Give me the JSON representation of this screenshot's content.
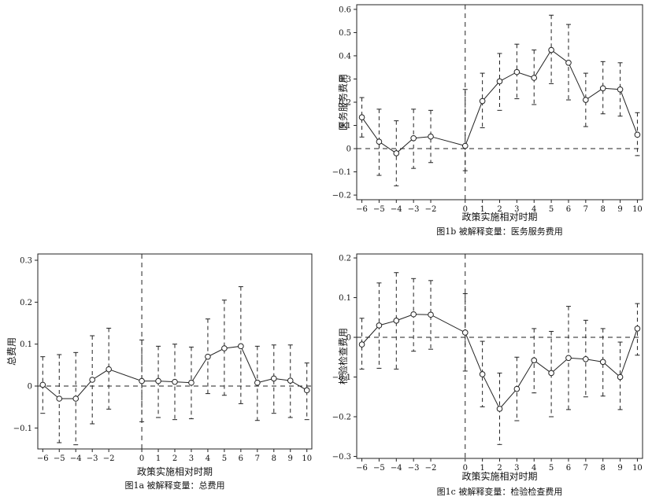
{
  "chart_data": [
    {
      "id": "1b",
      "type": "line",
      "caption": "图1b  被解释变量：医务服务费用",
      "xlabel": "政策实施相对时期",
      "ylabel": "医务服务费用",
      "x": [
        -6,
        -5,
        -4,
        -3,
        -2,
        0,
        1,
        2,
        3,
        4,
        5,
        6,
        7,
        8,
        9,
        10
      ],
      "x_ticks": [
        -6,
        -5,
        -4,
        -3,
        -2,
        0,
        1,
        2,
        3,
        4,
        5,
        6,
        7,
        8,
        9,
        10
      ],
      "x_tick_labels": [
        "−6",
        "−5",
        "−4",
        "−3",
        "−2",
        "0",
        "1",
        "2",
        "3",
        "4",
        "5",
        "6",
        "7",
        "8",
        "9",
        "10"
      ],
      "y_ticks": [
        -0.2,
        -0.1,
        0,
        0.1,
        0.2,
        0.3,
        0.4,
        0.5,
        0.6
      ],
      "y_tick_labels": [
        "−0.2",
        "−0.1",
        "0",
        "0.1",
        "0.2",
        "0.3",
        "0.4",
        "0.5",
        "0.6"
      ],
      "xlim": [
        -6.3,
        10.3
      ],
      "ylim": [
        -0.22,
        0.62
      ],
      "grid": false,
      "reference_lines": {
        "y": 0,
        "x": 0
      },
      "series": [
        {
          "values": [
            0.135,
            0.03,
            -0.02,
            0.045,
            0.052,
            0.012,
            0.205,
            0.29,
            0.33,
            0.305,
            0.425,
            0.37,
            0.21,
            0.26,
            0.255,
            0.06
          ],
          "ci_low": [
            0.05,
            -0.115,
            -0.16,
            -0.085,
            -0.06,
            -0.095,
            0.09,
            0.165,
            0.215,
            0.19,
            0.28,
            0.21,
            0.095,
            0.15,
            0.14,
            -0.03
          ],
          "ci_high": [
            0.22,
            0.17,
            0.12,
            0.17,
            0.165,
            0.255,
            0.325,
            0.41,
            0.45,
            0.425,
            0.575,
            0.535,
            0.325,
            0.375,
            0.37,
            0.155
          ]
        }
      ]
    },
    {
      "id": "1a",
      "type": "line",
      "caption": "图1a  被解释变量：总费用",
      "xlabel": "政策实施相对时期",
      "ylabel": "总费用",
      "x": [
        -6,
        -5,
        -4,
        -3,
        -2,
        0,
        1,
        2,
        3,
        4,
        5,
        6,
        7,
        8,
        9,
        10
      ],
      "x_ticks": [
        -6,
        -5,
        -4,
        -3,
        -2,
        0,
        1,
        2,
        3,
        4,
        5,
        6,
        7,
        8,
        9,
        10
      ],
      "x_tick_labels": [
        "−6",
        "−5",
        "−4",
        "−3",
        "−2",
        "0",
        "1",
        "2",
        "3",
        "4",
        "5",
        "6",
        "7",
        "8",
        "9",
        "10"
      ],
      "y_ticks": [
        -0.1,
        0,
        0.1,
        0.2,
        0.3
      ],
      "y_tick_labels": [
        "−0.1",
        "0",
        "0.1",
        "0.2",
        "0.3"
      ],
      "xlim": [
        -6.3,
        10.3
      ],
      "ylim": [
        -0.15,
        0.315
      ],
      "grid": false,
      "reference_lines": {
        "y": 0,
        "x": 0
      },
      "series": [
        {
          "values": [
            0.003,
            -0.03,
            -0.03,
            0.015,
            0.04,
            0.012,
            0.012,
            0.01,
            0.008,
            0.07,
            0.09,
            0.095,
            0.008,
            0.018,
            0.013,
            -0.01
          ],
          "ci_low": [
            -0.065,
            -0.135,
            -0.14,
            -0.09,
            -0.055,
            -0.085,
            -0.075,
            -0.08,
            -0.078,
            -0.018,
            -0.022,
            -0.042,
            -0.082,
            -0.065,
            -0.075,
            -0.08
          ],
          "ci_high": [
            0.07,
            0.075,
            0.08,
            0.12,
            0.138,
            0.11,
            0.095,
            0.1,
            0.093,
            0.16,
            0.205,
            0.237,
            0.095,
            0.098,
            0.098,
            0.055
          ]
        }
      ]
    },
    {
      "id": "1c",
      "type": "line",
      "caption": "图1c  被解释变量：检验检查费用",
      "xlabel": "政策实施相对时期",
      "ylabel": "检验检查费用",
      "x": [
        -6,
        -5,
        -4,
        -3,
        -2,
        0,
        1,
        2,
        3,
        4,
        5,
        6,
        7,
        8,
        9,
        10
      ],
      "x_ticks": [
        -6,
        -5,
        -4,
        -3,
        -2,
        0,
        1,
        2,
        3,
        4,
        5,
        6,
        7,
        8,
        9,
        10
      ],
      "x_tick_labels": [
        "−6",
        "−5",
        "−4",
        "−3",
        "−2",
        "0",
        "1",
        "2",
        "3",
        "4",
        "5",
        "6",
        "7",
        "8",
        "9",
        "10"
      ],
      "y_ticks": [
        -0.3,
        -0.2,
        -0.1,
        0,
        0.1,
        0.2
      ],
      "y_tick_labels": [
        "−0.3",
        "−0.2",
        "−0.1",
        "0",
        "0.1",
        "0.2"
      ],
      "xlim": [
        -6.3,
        10.3
      ],
      "ylim": [
        -0.305,
        0.21
      ],
      "grid": false,
      "reference_lines": {
        "y": 0,
        "x": 0
      },
      "series": [
        {
          "values": [
            -0.018,
            0.03,
            0.042,
            0.058,
            0.057,
            0.012,
            -0.093,
            -0.18,
            -0.13,
            -0.058,
            -0.09,
            -0.052,
            -0.055,
            -0.062,
            -0.1,
            0.022
          ],
          "ci_low": [
            -0.08,
            -0.078,
            -0.08,
            -0.035,
            -0.03,
            -0.085,
            -0.175,
            -0.27,
            -0.21,
            -0.14,
            -0.2,
            -0.182,
            -0.15,
            -0.148,
            -0.182,
            -0.045
          ],
          "ci_high": [
            0.048,
            0.137,
            0.163,
            0.148,
            0.143,
            0.11,
            -0.01,
            -0.09,
            -0.05,
            0.022,
            0.015,
            0.078,
            0.043,
            0.022,
            -0.012,
            0.085
          ]
        }
      ]
    }
  ]
}
